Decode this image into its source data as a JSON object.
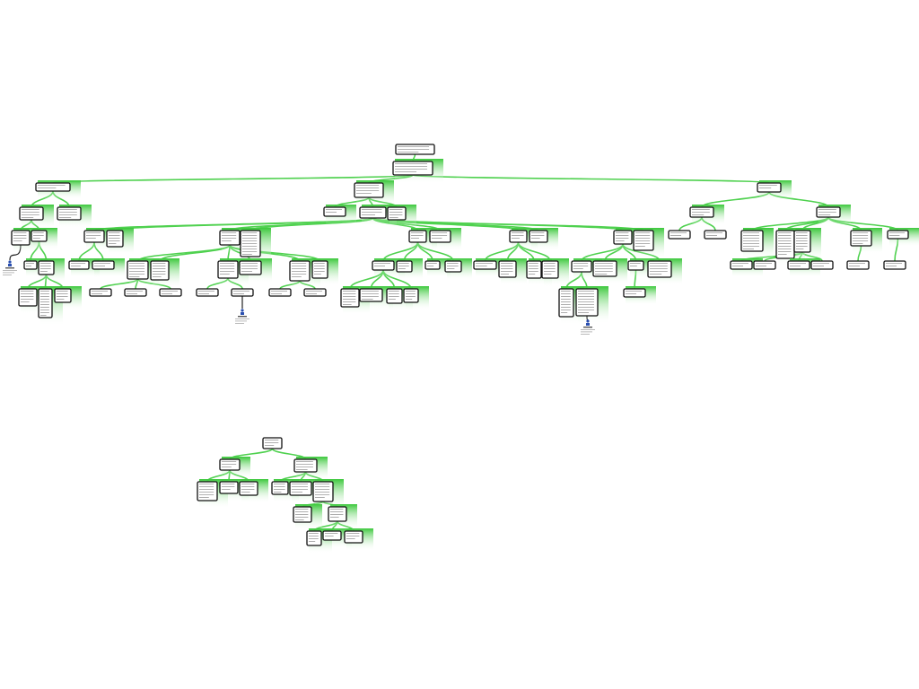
{
  "diagram": {
    "type": "mind-map",
    "trees": 2,
    "text_legible": false,
    "colors": {
      "connector": "#4fd14f",
      "node_shadow": "#3cc83c",
      "node_border": "#111111",
      "node_fill": "#ffffff",
      "text_placeholder": "#9a9a9a",
      "person_icon": "#2a4fb0"
    },
    "icons": [
      "person-icon",
      "person-icon",
      "person-icon"
    ]
  }
}
